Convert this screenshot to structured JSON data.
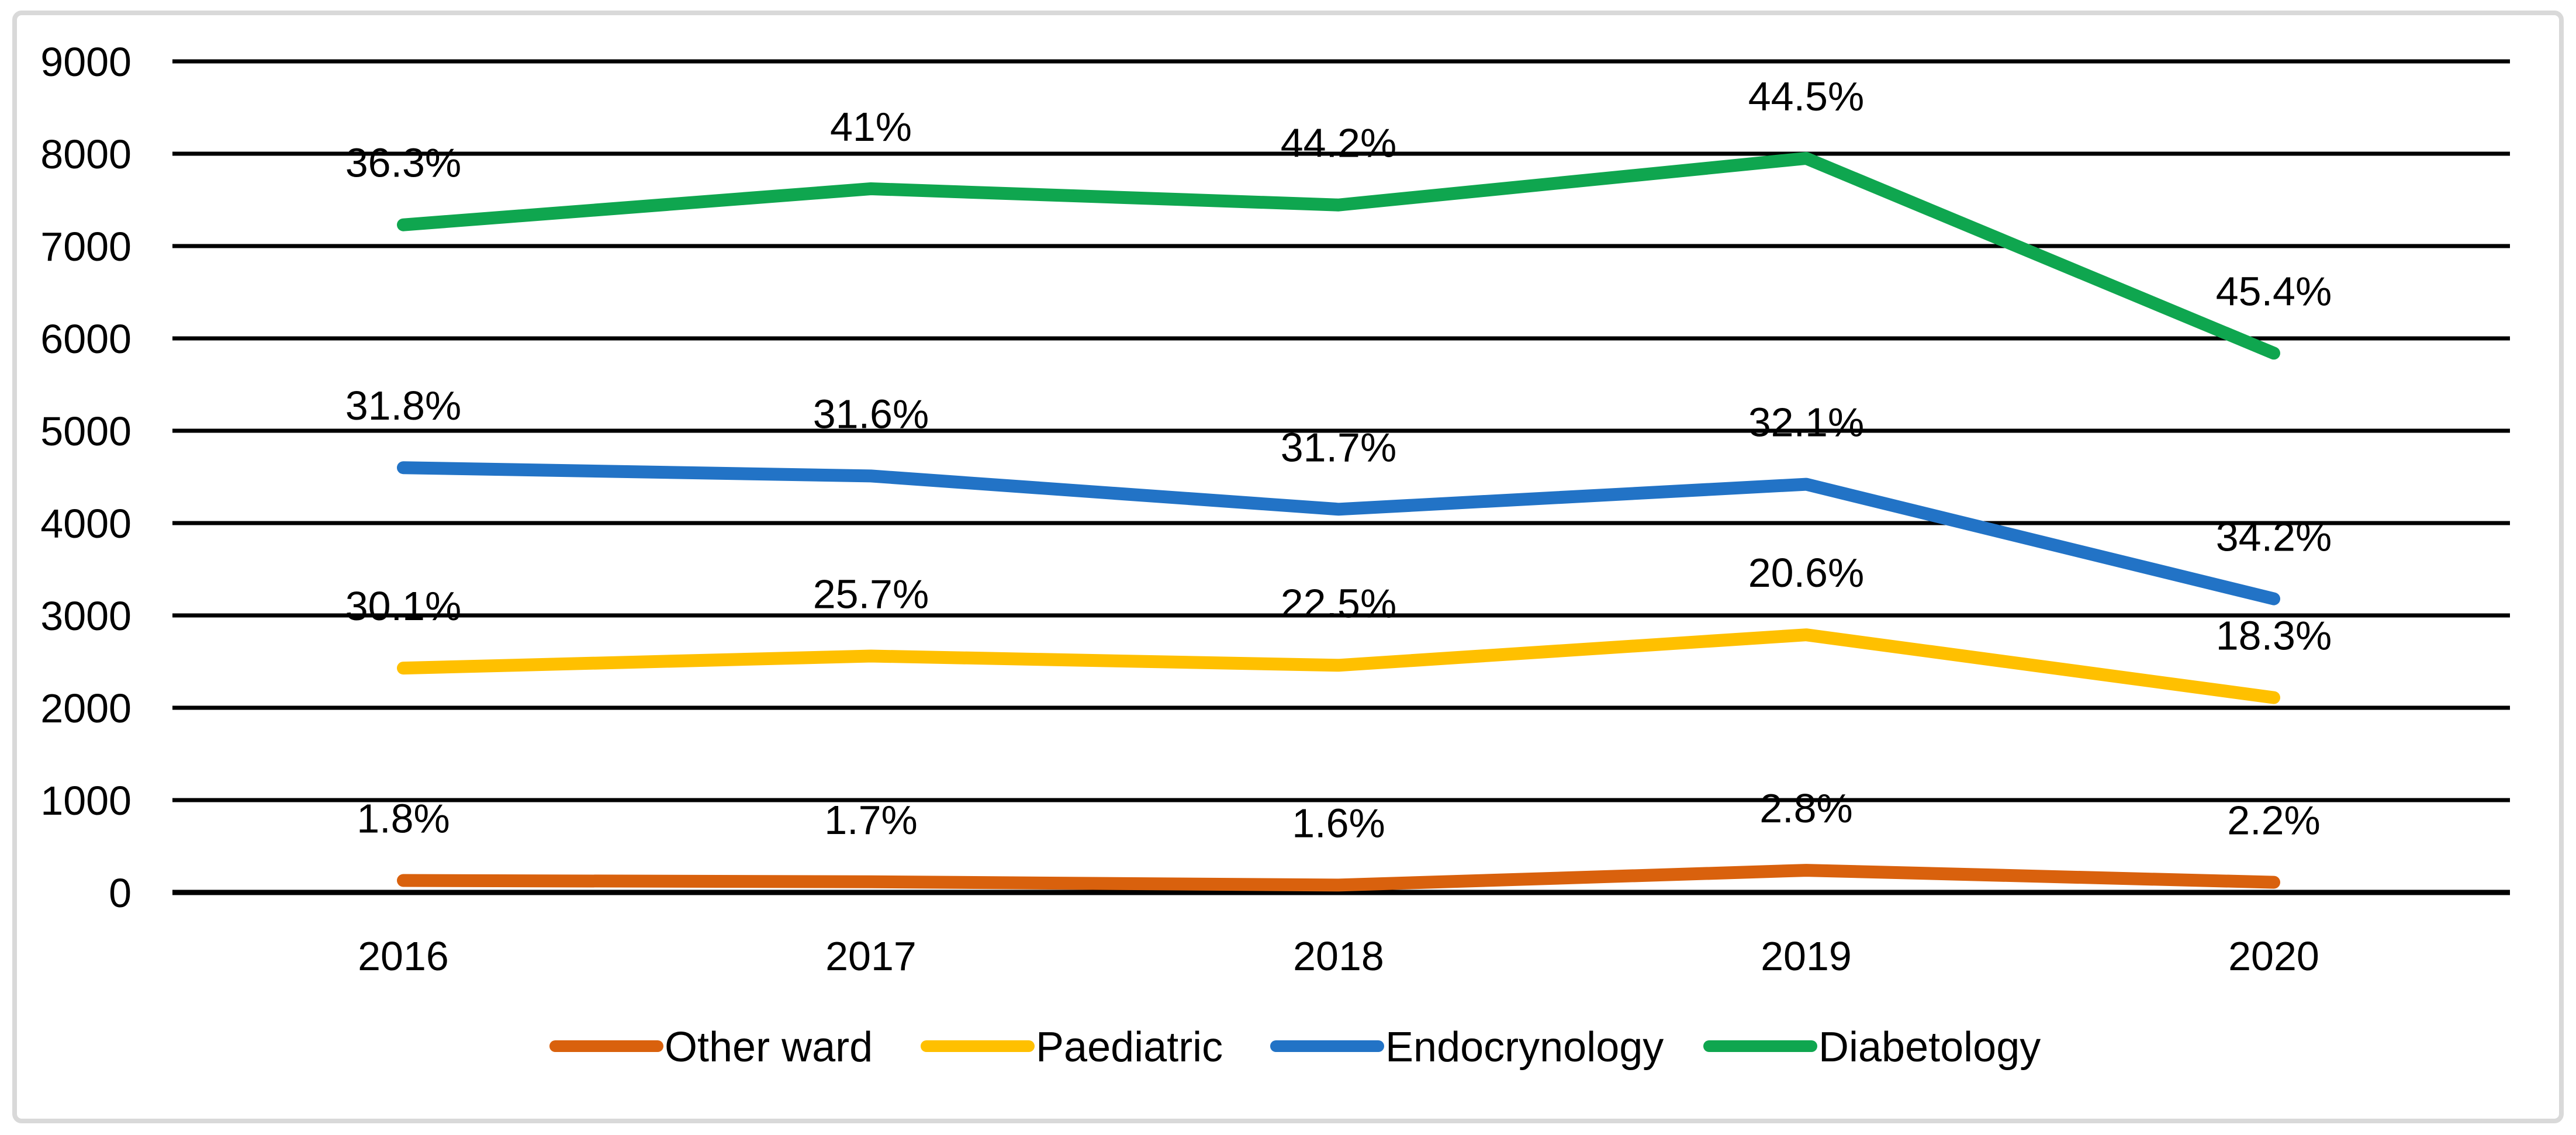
{
  "frame": {
    "background": "#FFFFFF",
    "border_color": "#D9D9D9",
    "grid_color": "#000000",
    "text_color": "#000000"
  },
  "chart_data": {
    "type": "line",
    "title": "",
    "xlabel": "",
    "ylabel": "",
    "categories": [
      "2016",
      "2017",
      "2018",
      "2019",
      "2020"
    ],
    "series": [
      {
        "name": "Other ward",
        "color": "#D9610D",
        "values": [
          130,
          115,
          80,
          240,
          110
        ],
        "point_labels": [
          "1.8%",
          "1.7%",
          "1.6%",
          "2.8%",
          "2.2%"
        ]
      },
      {
        "name": "Paediatric",
        "color": "#FFC000",
        "values": [
          2430,
          2560,
          2460,
          2790,
          2110
        ],
        "point_labels": [
          "30.1%",
          "25.7%",
          "22.5%",
          "20.6%",
          "18.3%"
        ]
      },
      {
        "name": "Endocrynology",
        "color": "#2273C6",
        "values": [
          4600,
          4510,
          4150,
          4420,
          3180
        ],
        "point_labels": [
          "31.8%",
          "31.6%",
          "31.7%",
          "32.1%",
          "34.2%"
        ]
      },
      {
        "name": "Diabetology",
        "color": "#0FA64F",
        "values": [
          7230,
          7620,
          7445,
          7950,
          5840
        ],
        "point_labels": [
          "36.3%",
          "41%",
          "44.2%",
          "44.5%",
          "45.4%"
        ]
      }
    ],
    "y_axis": {
      "min": 0,
      "max": 9000,
      "step": 1000,
      "tick_labels": [
        "0",
        "1000",
        "2000",
        "3000",
        "4000",
        "5000",
        "6000",
        "7000",
        "8000",
        "9000"
      ]
    },
    "ylim": [
      0,
      9000
    ],
    "grid": "horizontal",
    "legend_position": "bottom"
  }
}
